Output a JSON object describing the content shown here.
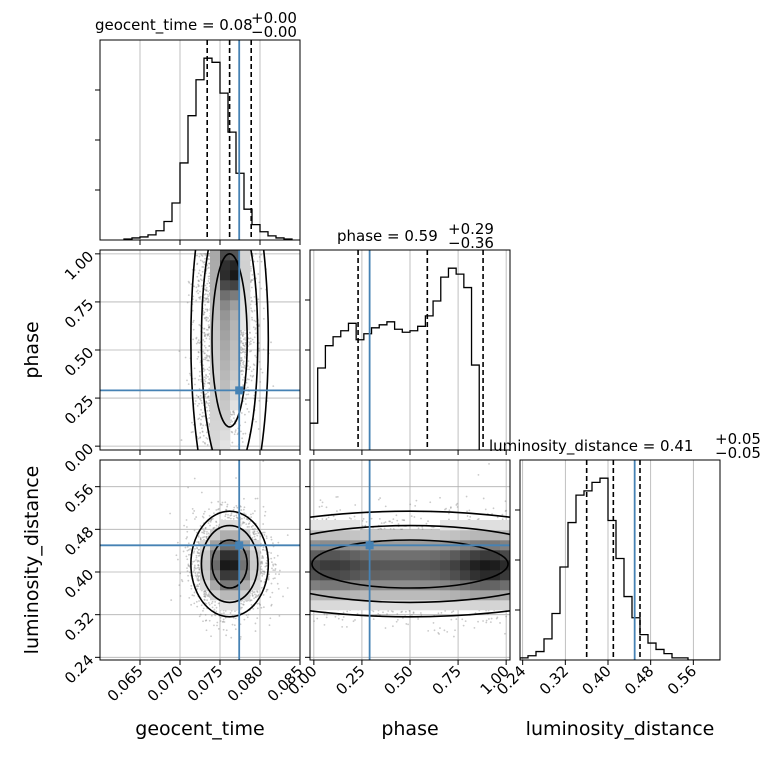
{
  "chart_data": {
    "type": "corner",
    "parameters": [
      "geocent_time",
      "phase",
      "luminosity_distance"
    ],
    "truths": {
      "geocent_time": 0.0774,
      "phase": 0.29,
      "luminosity_distance": 0.45
    },
    "titles": [
      {
        "param": "geocent_time",
        "prefix": "geocent_time = ",
        "median": "0.08",
        "plus": "+0.00",
        "minus": "−0.00"
      },
      {
        "param": "phase",
        "prefix": "phase = ",
        "median": "0.59",
        "plus": "+0.29",
        "minus": "−0.36"
      },
      {
        "param": "luminosity_distance",
        "prefix": "luminosity_distance = ",
        "median": "0.41",
        "plus": "+0.05",
        "minus": "−0.05"
      }
    ],
    "axes": {
      "geocent_time": {
        "range": [
          0.06,
          0.085
        ],
        "ticks": [
          0.065,
          0.07,
          0.075,
          0.08,
          0.085
        ],
        "tick_labels": [
          "0.065",
          "0.070",
          "0.075",
          "0.080",
          "0.085"
        ]
      },
      "phase": {
        "range": [
          -0.02,
          1.02
        ],
        "ticks": [
          0.0,
          0.25,
          0.5,
          0.75,
          1.0
        ],
        "tick_labels": [
          "0.00",
          "0.25",
          "0.50",
          "0.75",
          "1.00"
        ]
      },
      "luminosity_distance": {
        "range": [
          0.235,
          0.61
        ],
        "ticks": [
          0.24,
          0.32,
          0.4,
          0.48,
          0.56
        ],
        "tick_labels": [
          "0.24",
          "0.32",
          "0.40",
          "0.48",
          "0.56"
        ]
      }
    },
    "histograms": {
      "geocent_time": {
        "bin_start": 0.063,
        "bin_width": 0.001,
        "counts": [
          1,
          2,
          3,
          5,
          9,
          18,
          36,
          75,
          121,
          156,
          177,
          173,
          143,
          105,
          65,
          30,
          15,
          8,
          4,
          2,
          1
        ],
        "quantiles": [
          0.0734,
          0.0762,
          0.0789
        ]
      },
      "phase": {
        "bin_start": -0.02,
        "bin_width": 0.04,
        "counts": [
          18,
          55,
          70,
          76,
          80,
          85,
          74,
          78,
          82,
          84,
          86,
          81,
          79,
          80,
          83,
          90,
          100,
          116,
          122,
          118,
          109,
          57
        ],
        "quantiles": [
          0.23,
          0.59,
          0.88
        ]
      },
      "luminosity_distance": {
        "bin_start": 0.235,
        "bin_width": 0.015,
        "counts": [
          1,
          2,
          4,
          10,
          22,
          44,
          65,
          78,
          80,
          84,
          86,
          66,
          48,
          30,
          20,
          12,
          8,
          5,
          3,
          1,
          1,
          0,
          0,
          0,
          0
        ],
        "quantiles": [
          0.36,
          0.41,
          0.46
        ]
      }
    },
    "grid": true
  }
}
